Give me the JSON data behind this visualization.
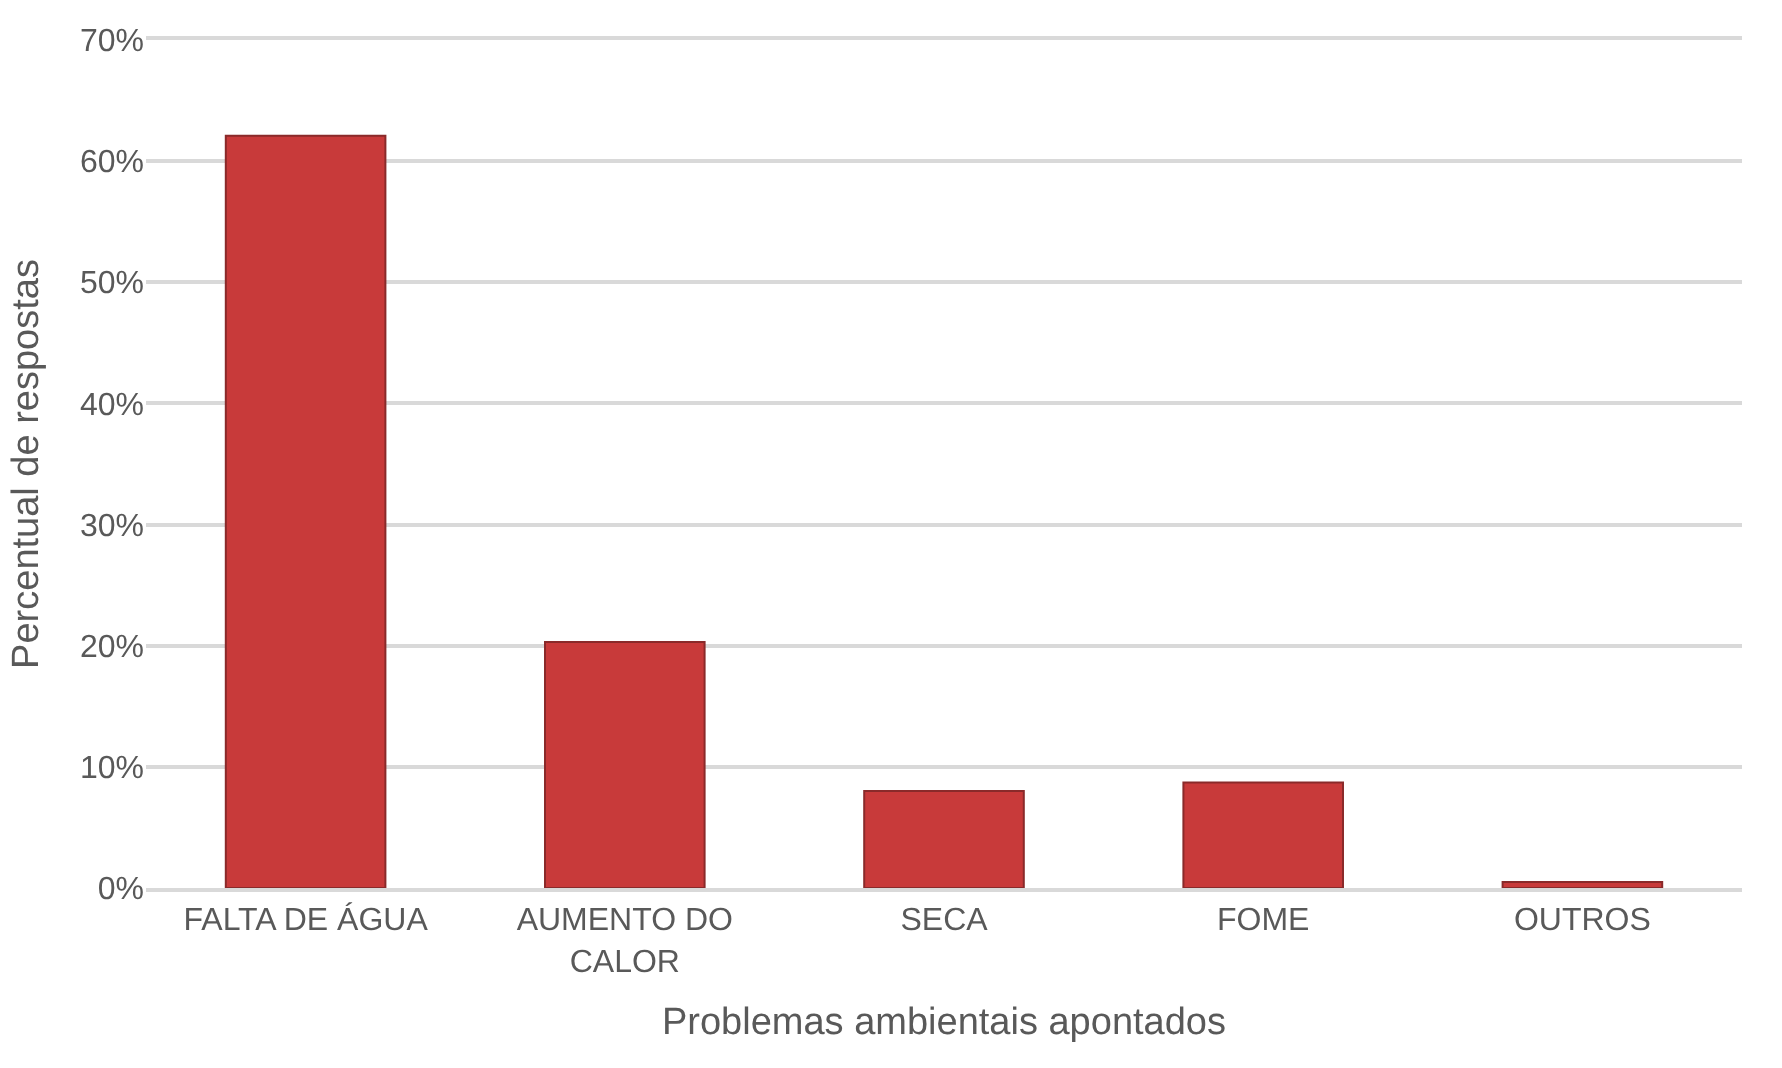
{
  "chart_data": {
    "type": "bar",
    "xlabel": "Problemas ambientais apontados",
    "ylabel": "Percentual de respostas",
    "categories": [
      "FALTA DE ÁGUA",
      "AUMENTO DO CALOR",
      "SECA",
      "FOME",
      "OUTROS"
    ],
    "values": [
      62.1,
      20.3,
      8.0,
      8.7,
      0.5
    ],
    "color": "#c83a3a",
    "ylim": [
      0,
      70
    ],
    "yticks": [
      {
        "value": 0,
        "label": "0%"
      },
      {
        "value": 10,
        "label": "10%"
      },
      {
        "value": 20,
        "label": "20%"
      },
      {
        "value": 30,
        "label": "30%"
      },
      {
        "value": 40,
        "label": "40%"
      },
      {
        "value": 50,
        "label": "50%"
      },
      {
        "value": 60,
        "label": "60%"
      },
      {
        "value": 70,
        "label": "70%"
      }
    ],
    "grid": "y"
  }
}
